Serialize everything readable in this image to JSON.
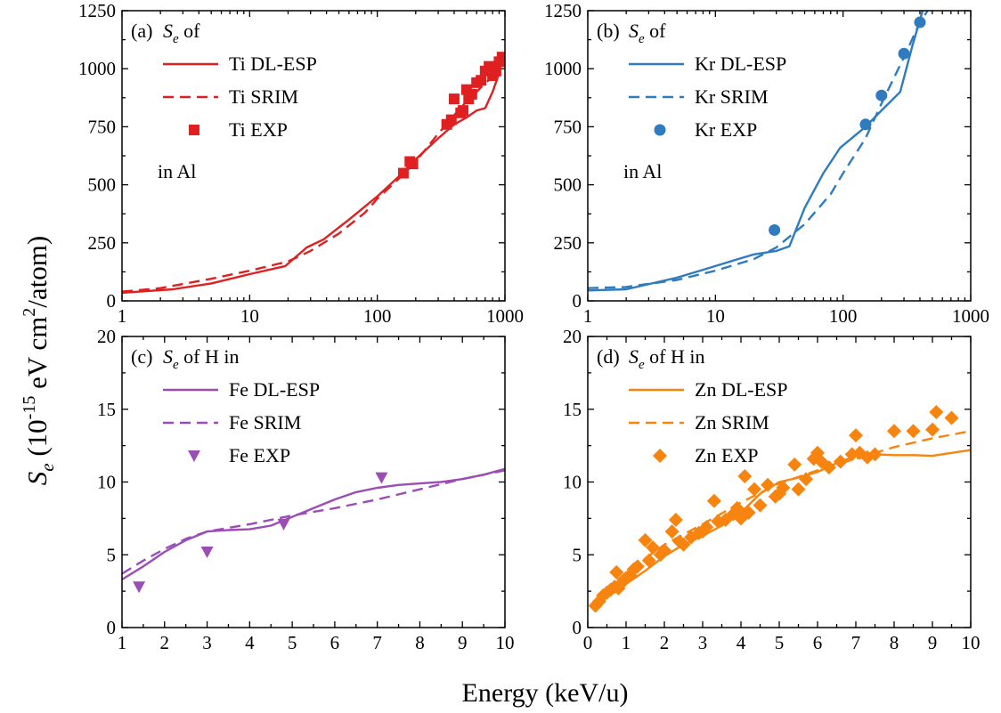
{
  "figure": {
    "ylabel_main": "S",
    "ylabel_sub": "e",
    "ylabel_open": " (10",
    "ylabel_exp": "-15",
    "ylabel_unit": " eV cm",
    "ylabel_sq": "2",
    "ylabel_close": "/atom)",
    "xlabel": "Energy (keV/u)"
  },
  "chart_data": [
    {
      "id": "a",
      "type": "line",
      "panel_tag": "(a)",
      "legend_title": {
        "S": "S",
        "sub": "e",
        "rest": " of"
      },
      "legend_footer": "in Al",
      "color": "#e02020",
      "xscale": "log",
      "xlim": [
        1,
        1000
      ],
      "ylim": [
        0,
        1250
      ],
      "xticks": [
        1,
        10,
        100,
        1000
      ],
      "xtick_labels": [
        "1",
        "10",
        "100",
        "1000"
      ],
      "yticks": [
        0,
        250,
        500,
        750,
        1000,
        1250
      ],
      "ytick_labels": [
        "0",
        "250",
        "500",
        "750",
        "1000",
        "1250"
      ],
      "marker": "square",
      "series": [
        {
          "name": "Ti DL-ESP",
          "kind": "line",
          "x": [
            1,
            2.5,
            5,
            10,
            19,
            28,
            38,
            60,
            100,
            150,
            200,
            300,
            400,
            500,
            600,
            700,
            800,
            900
          ],
          "y": [
            35,
            50,
            75,
            115,
            150,
            230,
            265,
            350,
            450,
            540,
            610,
            700,
            760,
            790,
            820,
            830,
            900,
            980
          ]
        },
        {
          "name": "Ti SRIM",
          "kind": "dashed",
          "x": [
            1,
            2,
            5,
            10,
            20,
            30,
            50,
            80,
            100,
            150,
            200,
            300,
            400,
            500,
            600,
            700,
            800,
            900
          ],
          "y": [
            40,
            55,
            95,
            130,
            170,
            215,
            290,
            380,
            440,
            530,
            600,
            720,
            800,
            860,
            900,
            940,
            960,
            980
          ]
        },
        {
          "name": "Ti EXP",
          "kind": "scatter",
          "x": [
            160,
            180,
            190,
            350,
            380,
            400,
            450,
            470,
            500,
            520,
            550,
            600,
            650,
            700,
            750,
            800,
            850,
            900,
            950
          ],
          "y": [
            550,
            600,
            590,
            760,
            780,
            870,
            810,
            820,
            910,
            870,
            890,
            940,
            950,
            990,
            1010,
            970,
            990,
            1030,
            1050
          ]
        }
      ]
    },
    {
      "id": "b",
      "type": "line",
      "panel_tag": "(b)",
      "legend_title": {
        "S": "S",
        "sub": "e",
        "rest": " of"
      },
      "legend_footer": "in Al",
      "color": "#2f7bbf",
      "xscale": "log",
      "xlim": [
        1,
        1000
      ],
      "ylim": [
        0,
        1250
      ],
      "xticks": [
        1,
        10,
        100,
        1000
      ],
      "xtick_labels": [
        "1",
        "10",
        "100",
        "1000"
      ],
      "yticks": [
        0,
        250,
        500,
        750,
        1000,
        1250
      ],
      "ytick_labels": [
        "0",
        "250",
        "500",
        "750",
        "1000",
        "1250"
      ],
      "marker": "circle",
      "series": [
        {
          "name": "Kr DL-ESP",
          "kind": "line",
          "x": [
            1,
            2,
            5,
            10,
            15,
            20,
            30,
            38,
            50,
            70,
            95,
            150,
            200,
            280,
            350,
            420
          ],
          "y": [
            45,
            50,
            100,
            150,
            180,
            200,
            215,
            235,
            400,
            550,
            660,
            750,
            820,
            900,
            1100,
            1250
          ]
        },
        {
          "name": "Kr SRIM",
          "kind": "dashed",
          "x": [
            1,
            2,
            5,
            10,
            20,
            30,
            50,
            80,
            100,
            150,
            200,
            300,
            400,
            460
          ],
          "y": [
            55,
            60,
            90,
            130,
            180,
            230,
            330,
            460,
            550,
            700,
            850,
            1050,
            1200,
            1250
          ]
        },
        {
          "name": "Kr EXP",
          "kind": "scatter",
          "x": [
            29,
            150,
            200,
            300,
            400
          ],
          "y": [
            305,
            760,
            885,
            1065,
            1200
          ]
        }
      ]
    },
    {
      "id": "c",
      "type": "line",
      "panel_tag": "(c)",
      "legend_title": {
        "S": "S",
        "sub": "e",
        "rest": " of H in"
      },
      "legend_footer": "",
      "color": "#9b4db5",
      "xscale": "linear",
      "xlim": [
        1,
        10
      ],
      "ylim": [
        0,
        20
      ],
      "xticks": [
        1,
        2,
        3,
        4,
        5,
        6,
        7,
        8,
        9,
        10
      ],
      "xtick_labels": [
        "1",
        "2",
        "3",
        "4",
        "5",
        "6",
        "7",
        "8",
        "9",
        "10"
      ],
      "yticks": [
        0,
        5,
        10,
        15,
        20
      ],
      "ytick_labels": [
        "0",
        "5",
        "10",
        "15",
        "20"
      ],
      "marker": "triangle-down",
      "series": [
        {
          "name": "Fe DL-ESP",
          "kind": "line",
          "x": [
            1,
            1.5,
            2,
            2.5,
            3,
            3.5,
            4,
            4.5,
            5,
            5.5,
            6,
            6.5,
            7,
            7.5,
            8,
            8.5,
            9,
            9.5,
            10
          ],
          "y": [
            3.3,
            4.2,
            5.2,
            6.0,
            6.6,
            6.7,
            6.75,
            7.0,
            7.6,
            8.2,
            8.8,
            9.3,
            9.6,
            9.8,
            9.9,
            10.0,
            10.2,
            10.5,
            10.9
          ]
        },
        {
          "name": "Fe SRIM",
          "kind": "dashed",
          "x": [
            1,
            1.5,
            2,
            2.5,
            3,
            4,
            5,
            6,
            7,
            8,
            9,
            10
          ],
          "y": [
            3.7,
            4.6,
            5.4,
            6.1,
            6.6,
            7.1,
            7.7,
            8.2,
            8.8,
            9.5,
            10.2,
            10.8
          ]
        },
        {
          "name": "Fe EXP",
          "kind": "scatter",
          "x": [
            1.4,
            3.0,
            4.8,
            7.1
          ],
          "y": [
            2.8,
            5.2,
            7.1,
            10.3
          ]
        }
      ]
    },
    {
      "id": "d",
      "type": "line",
      "panel_tag": "(d)",
      "legend_title": {
        "S": "S",
        "sub": "e",
        "rest": " of H in"
      },
      "legend_footer": "",
      "color": "#f7840e",
      "xscale": "linear",
      "xlim": [
        0,
        10
      ],
      "ylim": [
        0,
        20
      ],
      "xticks": [
        0,
        1,
        2,
        3,
        4,
        5,
        6,
        7,
        8,
        9,
        10
      ],
      "xtick_labels": [
        "0",
        "1",
        "2",
        "3",
        "4",
        "5",
        "6",
        "7",
        "8",
        "9",
        "10"
      ],
      "yticks": [
        0,
        5,
        10,
        15,
        20
      ],
      "ytick_labels": [
        "0",
        "5",
        "10",
        "15",
        "20"
      ],
      "marker": "diamond",
      "series": [
        {
          "name": "Zn DL-ESP",
          "kind": "line",
          "x": [
            0.2,
            0.5,
            1,
            1.5,
            2,
            2.5,
            3,
            3.5,
            4,
            4.5,
            5,
            5.5,
            6,
            6.5,
            7,
            7.5,
            8,
            8.5,
            9,
            9.5,
            10
          ],
          "y": [
            1.5,
            2.3,
            3.0,
            3.9,
            4.9,
            5.7,
            6.3,
            7.0,
            7.9,
            9.2,
            10.0,
            10.3,
            10.7,
            11.3,
            11.8,
            11.9,
            11.85,
            11.85,
            11.8,
            12.0,
            12.2
          ]
        },
        {
          "name": "Zn SRIM",
          "kind": "dashed",
          "x": [
            0.2,
            0.5,
            1,
            2,
            3,
            4,
            5,
            6,
            7,
            8,
            9,
            10
          ],
          "y": [
            1.5,
            2.6,
            3.8,
            5.7,
            7.1,
            8.6,
            9.9,
            10.8,
            11.6,
            12.4,
            13.0,
            13.5
          ]
        },
        {
          "name": "Zn EXP",
          "kind": "scatter",
          "x": [
            0.2,
            0.3,
            0.4,
            0.5,
            0.6,
            0.7,
            0.75,
            0.8,
            0.9,
            1.0,
            1.1,
            1.2,
            1.3,
            1.5,
            1.6,
            1.7,
            1.9,
            2.0,
            2.2,
            2.3,
            2.4,
            2.5,
            2.7,
            2.9,
            3.0,
            3.1,
            3.3,
            3.4,
            3.6,
            3.8,
            3.9,
            4.0,
            4.1,
            4.2,
            4.35,
            4.5,
            4.7,
            4.9,
            5.0,
            5.1,
            5.4,
            5.5,
            5.7,
            5.9,
            6.0,
            6.1,
            6.3,
            6.6,
            6.9,
            7.0,
            7.1,
            7.3,
            7.5,
            8.0,
            8.5,
            9.0,
            9.1,
            9.5
          ],
          "y": [
            1.5,
            1.8,
            2.2,
            2.4,
            2.6,
            2.8,
            3.8,
            2.7,
            3.1,
            3.4,
            3.6,
            4.0,
            4.2,
            6.0,
            4.6,
            5.5,
            5.0,
            5.3,
            6.6,
            7.4,
            5.9,
            5.7,
            6.2,
            6.5,
            6.6,
            6.9,
            8.7,
            7.3,
            7.4,
            7.8,
            8.2,
            7.5,
            10.4,
            7.9,
            9.5,
            8.4,
            9.8,
            9.0,
            9.2,
            9.6,
            11.2,
            9.5,
            10.2,
            11.6,
            12.0,
            11.4,
            11.0,
            11.4,
            11.9,
            13.2,
            12.0,
            11.7,
            11.9,
            13.5,
            13.5,
            13.6,
            14.8,
            14.4
          ]
        }
      ]
    }
  ]
}
